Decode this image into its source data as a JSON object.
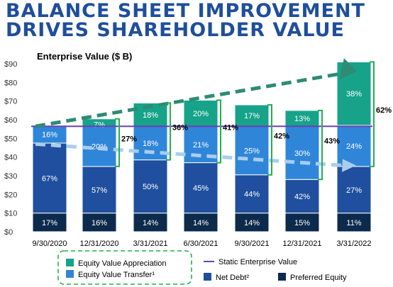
{
  "title": {
    "line1": "BALANCE SHEET IMPROVEMENT",
    "line2": "DRIVES SHAREHOLDER VALUE"
  },
  "chart_data": {
    "type": "bar",
    "stacked": true,
    "title": "Enterprise Value ($ B)",
    "xlabel": "",
    "ylabel": "",
    "ylim": [
      0,
      90
    ],
    "yticks": [
      "$0",
      "$10",
      "$20",
      "$30",
      "$40",
      "$50",
      "$60",
      "$70",
      "$80",
      "$90"
    ],
    "categories": [
      "9/30/2020",
      "12/31/2020",
      "3/31/2021",
      "6/30/2021",
      "9/30/2021",
      "12/31/2021",
      "3/31/2022"
    ],
    "series": [
      {
        "name": "Preferred Equity",
        "color": "#0c2a4c",
        "values": [
          10,
          10,
          10,
          10,
          10,
          10,
          10
        ],
        "labels": [
          "17%",
          "16%",
          "14%",
          "14%",
          "14%",
          "15%",
          "11%"
        ]
      },
      {
        "name": "Net Debt²",
        "color": "#1f4f9e",
        "values": [
          37.5,
          25,
          28.5,
          27,
          20.5,
          18,
          25
        ],
        "labels": [
          "67%",
          "57%",
          "50%",
          "45%",
          "44%",
          "42%",
          "27%"
        ]
      },
      {
        "name": "Equity Value Transfer¹",
        "color": "#2f86d9",
        "values": [
          9.5,
          21.5,
          18,
          19.5,
          26,
          28.5,
          22
        ],
        "labels": [
          "16%",
          "20%",
          "18%",
          "21%",
          "25%",
          "30%",
          "24%"
        ]
      },
      {
        "name": "Equity Value Appreciation",
        "color": "#16a38a",
        "values": [
          0,
          4,
          12.5,
          14,
          11.5,
          8.5,
          34
        ],
        "labels": [
          "",
          "7%",
          "18%",
          "20%",
          "17%",
          "13%",
          "38%"
        ]
      }
    ],
    "static_enterprise_value": {
      "name": "Static Enterprise Value",
      "value": 56.5,
      "color": "#6f3fb3"
    },
    "bracket_totals": [
      "27%",
      "36%",
      "41%",
      "42%",
      "43%",
      "62%"
    ],
    "legend": {
      "boxed": [
        "Equity Value Appreciation",
        "Equity Value Transfer¹"
      ],
      "line": "Static Enterprise Value",
      "bottom": [
        "Net Debt²",
        "Preferred Equity"
      ]
    }
  }
}
